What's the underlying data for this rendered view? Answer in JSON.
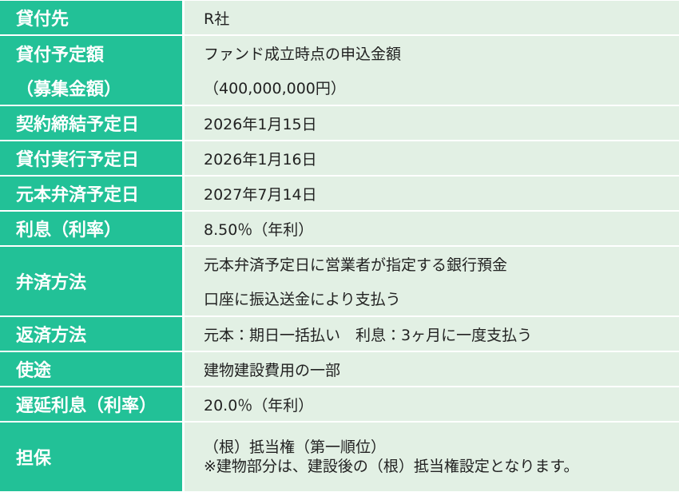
{
  "table": {
    "rows": [
      {
        "label": [
          "貸付先"
        ],
        "value": [
          "R社"
        ]
      },
      {
        "label": [
          "貸付予定額",
          "（募集金額）"
        ],
        "value": [
          "ファンド成立時点の申込金額",
          "（400,000,000円）"
        ]
      },
      {
        "label": [
          "契約締結予定日"
        ],
        "value": [
          "2026年1月15日"
        ]
      },
      {
        "label": [
          "貸付実行予定日"
        ],
        "value": [
          "2026年1月16日"
        ]
      },
      {
        "label": [
          "元本弁済予定日"
        ],
        "value": [
          "2027年7月14日"
        ]
      },
      {
        "label": [
          "利息（利率）"
        ],
        "value": [
          "8.50％（年利）"
        ]
      },
      {
        "label": [
          "弁済方法"
        ],
        "value": [
          "元本弁済予定日に営業者が指定する銀行預金",
          "口座に振込送金により支払う"
        ]
      },
      {
        "label": [
          "返済方法"
        ],
        "value": [
          "元本：期日一括払い　利息：3ヶ月に一度支払う"
        ]
      },
      {
        "label": [
          "使途"
        ],
        "value": [
          "建物建設費用の一部"
        ]
      },
      {
        "label": [
          "遅延利息（利率）"
        ],
        "value": [
          "20.0％（年利）"
        ]
      },
      {
        "label": [
          "担保"
        ],
        "value": [
          "（根）抵当権（第一順位）",
          "※建物部分は、建設後の（根）抵当権設定となります。"
        ]
      }
    ]
  }
}
